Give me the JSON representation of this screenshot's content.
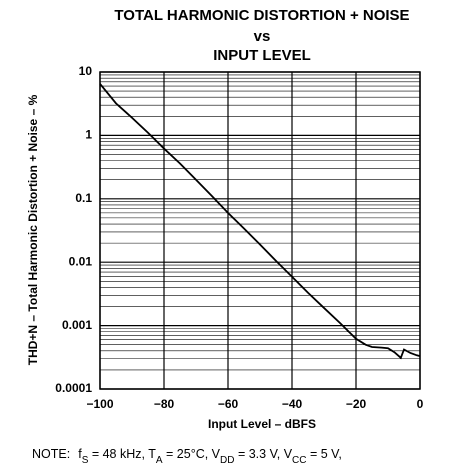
{
  "chart_data": {
    "type": "line",
    "title": [
      "TOTAL HARMONIC DISTORTION + NOISE",
      "vs",
      "INPUT LEVEL"
    ],
    "x_label": "Input Level – dBFS",
    "y_label": "THD+N – Total Harmonic Distortion + Noise – %",
    "note": [
      "NOTE:",
      "f",
      "S",
      " = 48 kHz, T",
      "A",
      " = 25°C, V",
      "DD",
      " = 3.3 V, V",
      "CC",
      " = 5 V,"
    ],
    "x": [
      -100,
      -95,
      -90,
      -85,
      -80,
      -75,
      -70,
      -65,
      -60,
      -55,
      -50,
      -45,
      -40,
      -35,
      -30,
      -25,
      -20,
      -17,
      -15,
      -12,
      -10,
      -8,
      -6,
      -5,
      -3,
      -1,
      0
    ],
    "series": [
      {
        "color": "#000000",
        "values": [
          6.5,
          3.2,
          1.9,
          1.1,
          0.62,
          0.36,
          0.2,
          0.11,
          0.06,
          0.034,
          0.019,
          0.0105,
          0.0059,
          0.0033,
          0.0019,
          0.0011,
          0.00062,
          0.0005,
          0.00046,
          0.00045,
          0.00044,
          0.00038,
          0.00031,
          0.00042,
          0.00037,
          0.00034,
          0.00033
        ]
      }
    ],
    "xlim": [
      -100,
      0
    ],
    "xticks": [
      {
        "value": -100,
        "label": "−100"
      },
      {
        "value": -80,
        "label": "−80"
      },
      {
        "value": -60,
        "label": "−60"
      },
      {
        "value": -40,
        "label": "−40"
      },
      {
        "value": -20,
        "label": "−20"
      },
      0
    ],
    "ylim": [
      0.0001,
      10
    ],
    "yticks": [
      0.0001,
      0.001,
      0.01,
      0.1,
      1,
      10
    ],
    "y_scale": "log",
    "grid": true
  }
}
